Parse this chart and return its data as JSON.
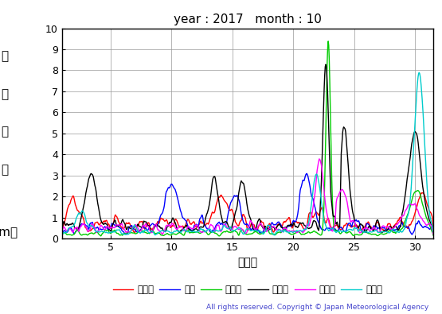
{
  "title": "year : 2017   month : 10",
  "xlabel": "（日）",
  "xlim": [
    1,
    31.5
  ],
  "ylim": [
    0,
    10
  ],
  "xticks": [
    5,
    10,
    15,
    20,
    25,
    30
  ],
  "yticks": [
    0,
    1,
    2,
    3,
    4,
    5,
    6,
    7,
    8,
    9,
    10
  ],
  "ylabel_chars": [
    "有",
    "義",
    "波",
    "高",
    "",
    "（m）"
  ],
  "series_names": [
    "上ノ国",
    "唐桑",
    "石廀崎",
    "経ヶ岸",
    "生月島",
    "屋久島"
  ],
  "series_colors": [
    "#ff0000",
    "#0000ff",
    "#00cc00",
    "#000000",
    "#ff00ff",
    "#00cccc"
  ],
  "series_lw": [
    1.0,
    1.0,
    1.0,
    1.0,
    1.0,
    1.0
  ],
  "copyright_text": "All rights reserved. Copyright © Japan Meteorological Agency",
  "copyright_color": "#4444cc",
  "background_color": "#ffffff",
  "grid_color": "#999999"
}
